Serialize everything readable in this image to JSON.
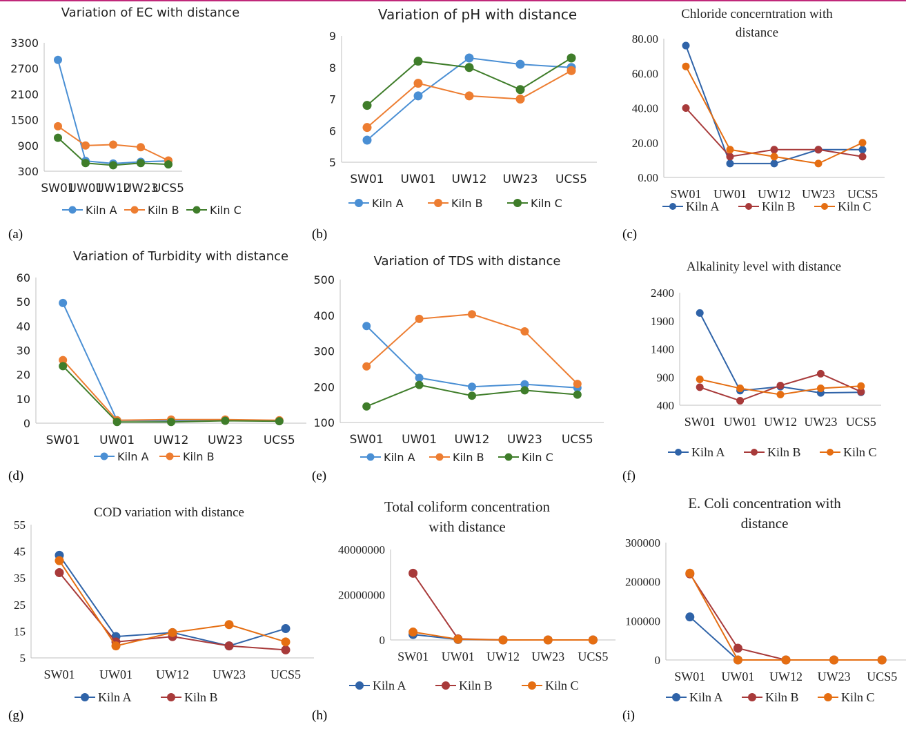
{
  "colors": {
    "kiln_a": "#4a8fd4",
    "kiln_a_dark": "#2f63a8",
    "kiln_b": "#ed7d31",
    "kiln_b_dark": "#a83a3a",
    "kiln_c_green": "#3f7d2a",
    "kiln_c_orange": "#e56e12",
    "axis": "#bfbfbf",
    "text": "#222222",
    "header_rule": "#c0287a"
  },
  "categories": [
    "SW01",
    "UW01",
    "UW12",
    "UW23",
    "UCS5"
  ],
  "chart_data": [
    {
      "panel": "(a)",
      "type": "line",
      "title": "Variation of EC with distance",
      "categories": [
        "SW01",
        "UW01",
        "UW12",
        "UW23",
        "UCS5"
      ],
      "yticks": [
        "3300",
        "2700",
        "2100",
        "1500",
        "900",
        "300"
      ],
      "ylim": [
        300,
        3300
      ],
      "legend": "bottom",
      "series": [
        {
          "name": "Kiln A",
          "values": [
            2900,
            540,
            480,
            520,
            540
          ]
        },
        {
          "name": "Kiln B",
          "values": [
            1350,
            900,
            920,
            860,
            550
          ]
        },
        {
          "name": "Kiln C",
          "values": [
            1080,
            490,
            440,
            490,
            460
          ]
        }
      ]
    },
    {
      "panel": "(b)",
      "type": "line",
      "title": "Variation of pH with distance",
      "categories": [
        "SW01",
        "UW01",
        "UW12",
        "UW23",
        "UCS5"
      ],
      "yticks": [
        "9",
        "8",
        "7",
        "6",
        "5"
      ],
      "ylim": [
        5,
        9
      ],
      "legend": "bottom",
      "series": [
        {
          "name": "Kiln A",
          "values": [
            5.7,
            7.1,
            8.3,
            8.1,
            8.0
          ]
        },
        {
          "name": "Kiln B",
          "values": [
            6.1,
            7.5,
            7.1,
            7.0,
            7.9
          ]
        },
        {
          "name": "Kiln C",
          "values": [
            6.8,
            8.2,
            8.0,
            7.3,
            8.3
          ]
        }
      ]
    },
    {
      "panel": "(c)",
      "type": "line",
      "title": "Chloride concerntration with distance",
      "categories": [
        "SW01",
        "UW01",
        "UW12",
        "UW23",
        "UCS5"
      ],
      "yticks": [
        "80.00",
        "60.00",
        "40.00",
        "20.00",
        "0.00"
      ],
      "ylim": [
        0,
        80
      ],
      "legend": "bottom",
      "series": [
        {
          "name": "Kiln A",
          "values": [
            76,
            8,
            8,
            16,
            16
          ]
        },
        {
          "name": "Kiln B",
          "values": [
            40,
            12,
            16,
            16,
            12
          ]
        },
        {
          "name": "Kiln C",
          "values": [
            64,
            16,
            12,
            8,
            20
          ]
        }
      ]
    },
    {
      "panel": "(d)",
      "type": "line",
      "title": "Variation of Turbidity with distance",
      "categories": [
        "SW01",
        "UW01",
        "UW12",
        "UW23",
        "UCS5"
      ],
      "yticks": [
        "60",
        "50",
        "40",
        "30",
        "20",
        "10",
        "0"
      ],
      "ylim": [
        0,
        60
      ],
      "legend": "bottom",
      "series": [
        {
          "name": "Kiln A",
          "values": [
            49.5,
            1.2,
            1.0,
            1.2,
            1.0
          ]
        },
        {
          "name": "Kiln B",
          "values": [
            26,
            1.2,
            1.5,
            1.5,
            1.2
          ]
        },
        {
          "values": [
            23.5,
            0.5,
            0.5,
            1.0,
            0.8
          ]
        }
      ]
    },
    {
      "panel": "(e)",
      "type": "line",
      "title": "Variation of TDS with distance",
      "categories": [
        "SW01",
        "UW01",
        "UW12",
        "UW23",
        "UCS5"
      ],
      "yticks": [
        "500",
        "400",
        "300",
        "200",
        "100"
      ],
      "ylim": [
        100,
        500
      ],
      "legend": "bottom",
      "series": [
        {
          "name": "Kiln A",
          "values": [
            370,
            225,
            200,
            207,
            197
          ]
        },
        {
          "name": "Kiln B",
          "values": [
            257,
            390,
            403,
            355,
            208
          ]
        },
        {
          "name": "Kiln C",
          "values": [
            145,
            205,
            175,
            190,
            178
          ]
        }
      ]
    },
    {
      "panel": "(f)",
      "type": "line",
      "title": "Alkalinity level with distance",
      "categories": [
        "SW01",
        "UW01",
        "UW12",
        "UW23",
        "UCS5"
      ],
      "yticks": [
        "2400",
        "1900",
        "1400",
        "900",
        "400"
      ],
      "ylim": [
        400,
        2400
      ],
      "legend": "bottom",
      "series": [
        {
          "name": "Kiln A",
          "values": [
            2040,
            660,
            730,
            620,
            630
          ]
        },
        {
          "name": "Kiln B",
          "values": [
            720,
            480,
            750,
            960,
            640
          ]
        },
        {
          "name": "Kiln C",
          "values": [
            860,
            700,
            590,
            700,
            740
          ]
        }
      ]
    },
    {
      "panel": "(g)",
      "type": "line",
      "title": "COD variation with distance",
      "categories": [
        "SW01",
        "UW01",
        "UW12",
        "UW23",
        "UCS5"
      ],
      "yticks": [
        "55",
        "45",
        "35",
        "25",
        "15",
        "5"
      ],
      "ylim": [
        5,
        55
      ],
      "legend": "bottom",
      "series": [
        {
          "name": "Kiln A",
          "values": [
            43.5,
            13,
            14.5,
            9.5,
            16
          ]
        },
        {
          "name": "Kiln B",
          "values": [
            37,
            11,
            13,
            9.5,
            8
          ]
        },
        {
          "values": [
            41.5,
            9.5,
            14.5,
            17.5,
            11
          ]
        }
      ]
    },
    {
      "panel": "(h)",
      "type": "line",
      "title": "Total coliform concentration with distance",
      "categories": [
        "SW01",
        "UW01",
        "UW12",
        "UW23",
        "UCS5"
      ],
      "yticks": [
        "40000000",
        "20000000",
        "0"
      ],
      "ylim": [
        0,
        40000000
      ],
      "legend": "bottom",
      "series": [
        {
          "name": "Kiln A",
          "values": [
            2400000,
            200000,
            0,
            0,
            0
          ]
        },
        {
          "name": "Kiln B",
          "values": [
            29500000,
            500000,
            0,
            0,
            0
          ]
        },
        {
          "name": "Kiln C",
          "values": [
            3500000,
            300000,
            0,
            0,
            0
          ]
        }
      ]
    },
    {
      "panel": "(i)",
      "type": "line",
      "title": "E. Coli concentration with distance",
      "categories": [
        "SW01",
        "UW01",
        "UW12",
        "UW23",
        "UCS5"
      ],
      "yticks": [
        "300000",
        "200000",
        "100000",
        "0"
      ],
      "ylim": [
        0,
        300000
      ],
      "legend": "bottom",
      "series": [
        {
          "name": "Kiln A",
          "values": [
            110000,
            0,
            0,
            0,
            0
          ]
        },
        {
          "name": "Kiln B",
          "values": [
            220000,
            30000,
            0,
            0,
            0
          ]
        },
        {
          "name": "Kiln C",
          "values": [
            222000,
            0,
            0,
            0,
            0
          ]
        }
      ]
    }
  ]
}
